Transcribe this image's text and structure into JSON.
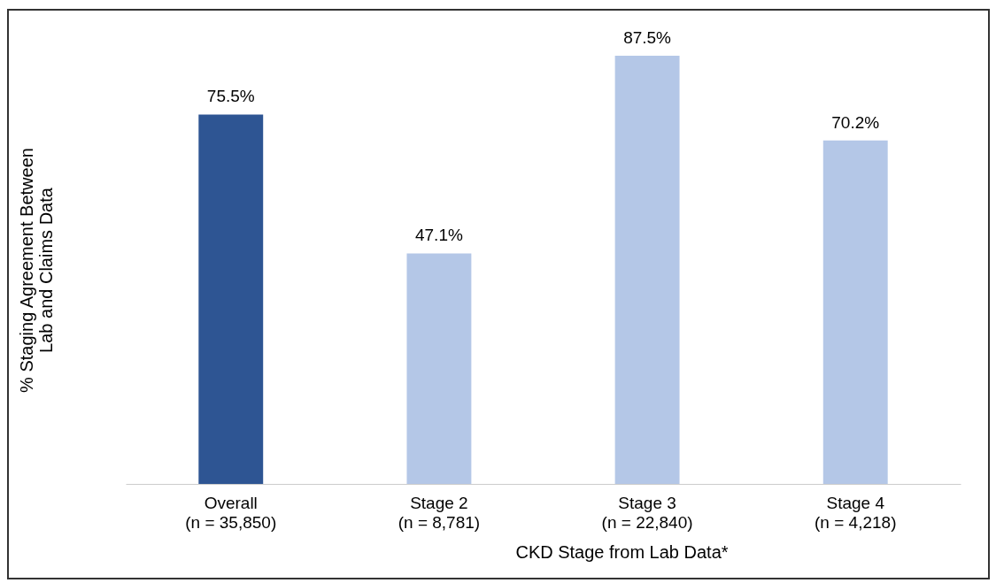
{
  "chart_data": {
    "type": "bar",
    "xlabel": "CKD Stage from Lab Data*",
    "ylabel": "% Staging Agreement Between\nLab and Claims Data",
    "categories": [
      "Overall\n(n = 35,850)",
      "Stage 2\n(n = 8,781)",
      "Stage 3\n(n = 22,840)",
      "Stage 4\n(n = 4,218)"
    ],
    "values": [
      75.5,
      47.1,
      87.5,
      70.2
    ],
    "value_labels": [
      "75.5%",
      "47.1%",
      "87.5%",
      "70.2%"
    ],
    "colors": [
      "#2e5593",
      "#b4c7e7",
      "#b4c7e7",
      "#b4c7e7"
    ]
  }
}
